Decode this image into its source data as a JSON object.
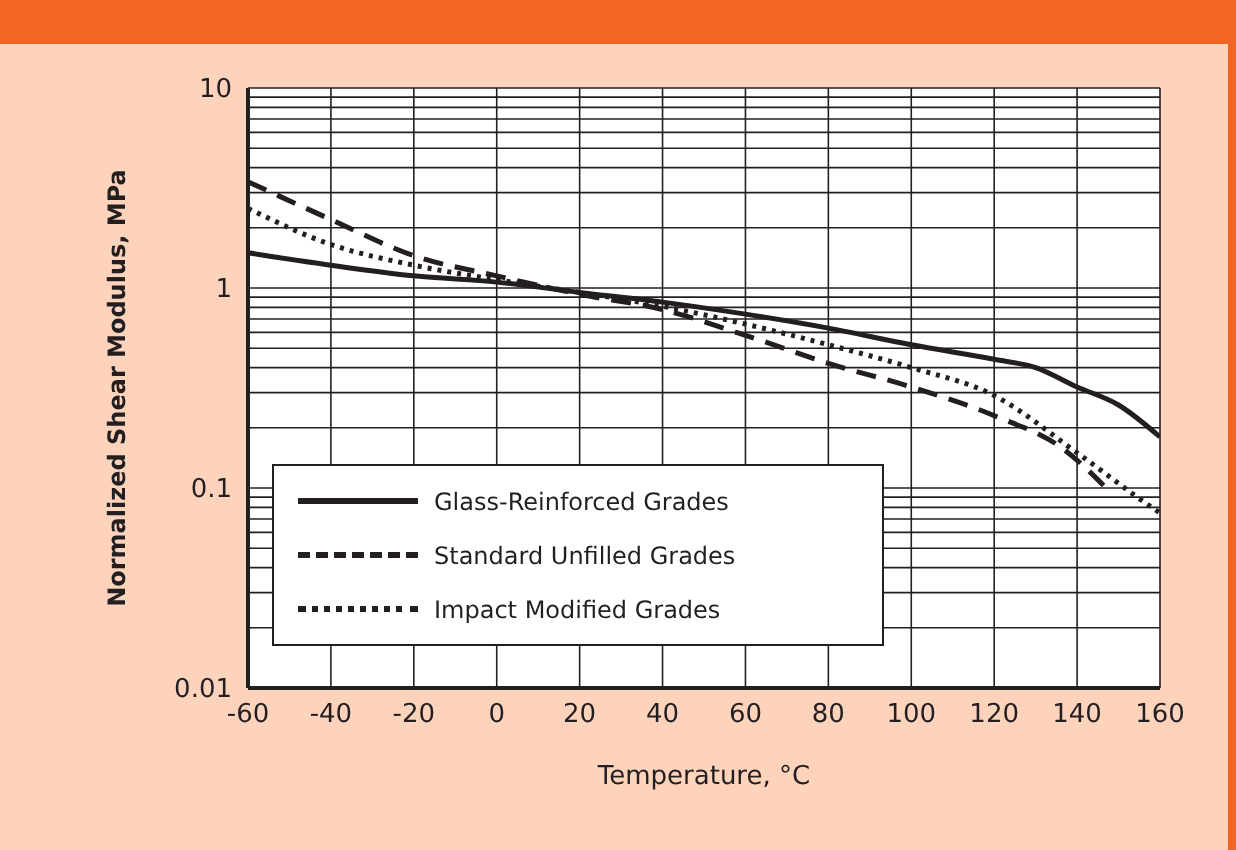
{
  "chart_data": {
    "type": "line",
    "xlabel": "Temperature, °C",
    "ylabel": "Normalized Shear Modulus, MPa",
    "x": [
      -60,
      -40,
      -20,
      0,
      20,
      40,
      60,
      80,
      100,
      120,
      130,
      140,
      150,
      160
    ],
    "series": [
      {
        "name": "Glass-Reinforced Grades",
        "color": "#231f20",
        "line_style": "solid",
        "values": [
          1.5,
          1.3,
          1.15,
          1.07,
          0.95,
          0.85,
          0.74,
          0.63,
          0.52,
          0.44,
          0.4,
          0.32,
          0.26,
          0.18
        ]
      },
      {
        "name": "Standard Unfilled Grades",
        "color": "#231f20",
        "line_style": "dashed",
        "x": [
          -60,
          -40,
          -20,
          0,
          20,
          40,
          60,
          80,
          100,
          120,
          137,
          147
        ],
        "values": [
          3.4,
          2.2,
          1.45,
          1.15,
          0.93,
          0.78,
          0.58,
          0.42,
          0.32,
          0.23,
          0.155,
          0.1
        ]
      },
      {
        "name": "Impact Modified Grades",
        "color": "#231f20",
        "line_style": "dotted",
        "x": [
          -60,
          -40,
          -20,
          0,
          20,
          40,
          60,
          80,
          100,
          120,
          140,
          158,
          160
        ],
        "values": [
          2.5,
          1.65,
          1.3,
          1.1,
          0.95,
          0.81,
          0.66,
          0.52,
          0.4,
          0.29,
          0.15,
          0.08,
          0.075
        ]
      }
    ],
    "log": "y",
    "xlim": [
      -60,
      160
    ],
    "xticks": [
      -60,
      -40,
      -20,
      0,
      20,
      40,
      60,
      80,
      100,
      120,
      140,
      160
    ],
    "ylim": [
      0.01,
      10
    ],
    "yticks": [
      0.01,
      {
        "value": 0.02,
        "label": null
      },
      {
        "value": 0.03,
        "label": null
      },
      {
        "value": 0.04,
        "label": null
      },
      {
        "value": 0.05,
        "label": null
      },
      {
        "value": 0.06,
        "label": null
      },
      {
        "value": 0.07,
        "label": null
      },
      {
        "value": 0.08,
        "label": null
      },
      {
        "value": 0.09,
        "label": null
      },
      0.1,
      {
        "value": 0.2,
        "label": null
      },
      {
        "value": 0.3,
        "label": null
      },
      {
        "value": 0.4,
        "label": null
      },
      {
        "value": 0.5,
        "label": null
      },
      {
        "value": 0.6,
        "label": null
      },
      {
        "value": 0.7,
        "label": null
      },
      {
        "value": 0.8,
        "label": null
      },
      {
        "value": 0.9,
        "label": null
      },
      1,
      {
        "value": 2,
        "label": null
      },
      {
        "value": 3,
        "label": null
      },
      {
        "value": 4,
        "label": null
      },
      {
        "value": 5,
        "label": null
      },
      {
        "value": 6,
        "label": null
      },
      {
        "value": 7,
        "label": null
      },
      {
        "value": 8,
        "label": null
      },
      {
        "value": 9,
        "label": null
      },
      10
    ],
    "grid": true,
    "legend": "bottom left",
    "marker": "none"
  }
}
